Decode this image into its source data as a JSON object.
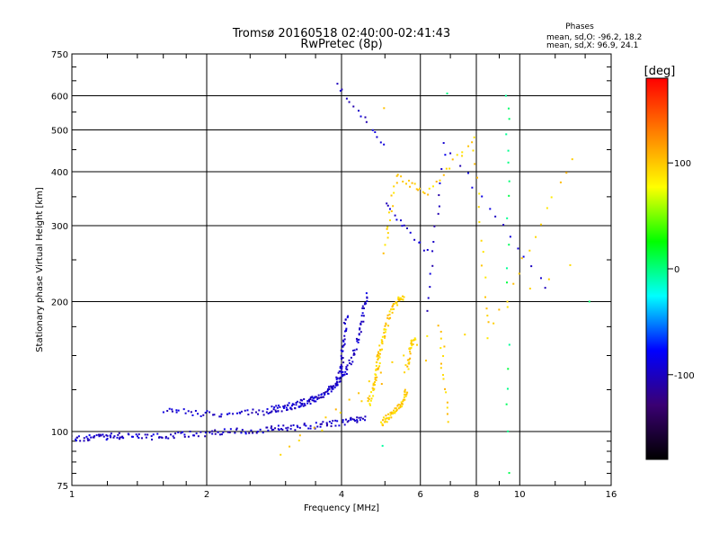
{
  "chart_data": {
    "type": "scatter",
    "title": "Tromsø 20160518 02:40:00-02:41:43",
    "subtitle": "RwPretec (8p)",
    "xlabel": "Frequency [MHz]",
    "ylabel": "Stationary phase Virtual Height [km]",
    "x_scale": "log",
    "y_scale": "log",
    "xlim": [
      1,
      16
    ],
    "ylim": [
      75,
      750
    ],
    "x_ticks": [
      1,
      2,
      4,
      6,
      8,
      10,
      16
    ],
    "y_ticks": [
      75,
      100,
      200,
      300,
      400,
      500,
      600,
      750
    ],
    "grid": true,
    "phase_stats": {
      "title": "Phases",
      "line_o": "mean, sd,O: -96.2, 18.2",
      "line_x": "mean, sd,X:  96.9, 24.1"
    },
    "colorbar": {
      "label": "[deg]",
      "ticks": [
        100,
        0,
        -100
      ],
      "range": [
        -180,
        180
      ],
      "colors": [
        "#000000",
        "#3a0073",
        "#0000ff",
        "#00ffff",
        "#00ff00",
        "#ffff00",
        "#ff8000",
        "#ff0000"
      ]
    },
    "traces": [
      {
        "name": "",
        "phase": -97,
        "points": [
          [
            1.0,
            96
          ],
          [
            1.1,
            97
          ],
          [
            1.2,
            97
          ],
          [
            1.3,
            98
          ],
          [
            1.5,
            97
          ],
          [
            1.7,
            98
          ],
          [
            2.0,
            99
          ],
          [
            2.3,
            100
          ],
          [
            2.7,
            101
          ],
          [
            3.0,
            102
          ],
          [
            3.4,
            103
          ],
          [
            3.8,
            104
          ],
          [
            4.2,
            106
          ],
          [
            4.5,
            108
          ]
        ]
      },
      {
        "name": "",
        "phase": -97,
        "points": [
          [
            1.6,
            112
          ],
          [
            1.9,
            110
          ],
          [
            2.3,
            110
          ],
          [
            2.7,
            111
          ],
          [
            3.0,
            113
          ],
          [
            3.3,
            116
          ],
          [
            3.6,
            121
          ],
          [
            3.9,
            128
          ],
          [
            4.1,
            138
          ],
          [
            4.3,
            155
          ],
          [
            4.45,
            180
          ],
          [
            4.55,
            210
          ]
        ]
      },
      {
        "name": "",
        "phase": -97,
        "points": [
          [
            2.8,
            113
          ],
          [
            3.1,
            115
          ],
          [
            3.4,
            118
          ],
          [
            3.7,
            123
          ],
          [
            3.9,
            130
          ],
          [
            4.0,
            142
          ],
          [
            4.05,
            160
          ],
          [
            4.1,
            185
          ]
        ]
      },
      {
        "name": "",
        "phase": 97,
        "points": [
          [
            4.6,
            115
          ],
          [
            4.7,
            125
          ],
          [
            4.8,
            138
          ],
          [
            4.85,
            150
          ],
          [
            4.95,
            165
          ],
          [
            5.1,
            185
          ],
          [
            5.3,
            200
          ],
          [
            5.5,
            205
          ]
        ]
      },
      {
        "name": "",
        "phase": 97,
        "points": [
          [
            4.9,
            104
          ],
          [
            5.1,
            108
          ],
          [
            5.3,
            112
          ],
          [
            5.5,
            118
          ],
          [
            5.6,
            125
          ],
          [
            5.6,
            140
          ],
          [
            5.7,
            158
          ],
          [
            5.8,
            163
          ]
        ]
      },
      {
        "name": "",
        "phase": 2,
        "points": [
          [
            9.4,
            600
          ],
          [
            9.4,
            560
          ],
          [
            9.4,
            530
          ],
          [
            9.4,
            490
          ],
          [
            9.4,
            450
          ],
          [
            9.4,
            420
          ],
          [
            9.4,
            380
          ],
          [
            9.4,
            350
          ],
          [
            9.4,
            310
          ],
          [
            9.4,
            270
          ],
          [
            9.4,
            240
          ],
          [
            9.4,
            220
          ],
          [
            9.4,
            160
          ],
          [
            9.4,
            140
          ],
          [
            9.4,
            125
          ],
          [
            9.4,
            115
          ],
          [
            9.4,
            100
          ],
          [
            9.4,
            80
          ]
        ]
      },
      {
        "name": "",
        "phase": -97,
        "points": [
          [
            3.9,
            640
          ],
          [
            5.0,
            460
          ],
          [
            5.0,
            335
          ],
          [
            6.2,
            262
          ],
          [
            6.2,
            190
          ],
          [
            6.8,
            460
          ],
          [
            11.5,
            215
          ]
        ]
      },
      {
        "name": "",
        "phase": 97,
        "points": [
          [
            5.0,
            560
          ],
          [
            5.0,
            262
          ],
          [
            5.3,
            390
          ],
          [
            6.2,
            355
          ],
          [
            7.9,
            480
          ],
          [
            8.5,
            165
          ],
          [
            13.0,
            430
          ],
          [
            13.0,
            245
          ],
          [
            2.9,
            88
          ],
          [
            6.6,
            175
          ],
          [
            6.9,
            105
          ]
        ]
      },
      {
        "name": "",
        "phase": 0,
        "points": [
          [
            6.9,
            610
          ],
          [
            4.9,
            92
          ],
          [
            14.2,
            200
          ]
        ]
      }
    ]
  }
}
